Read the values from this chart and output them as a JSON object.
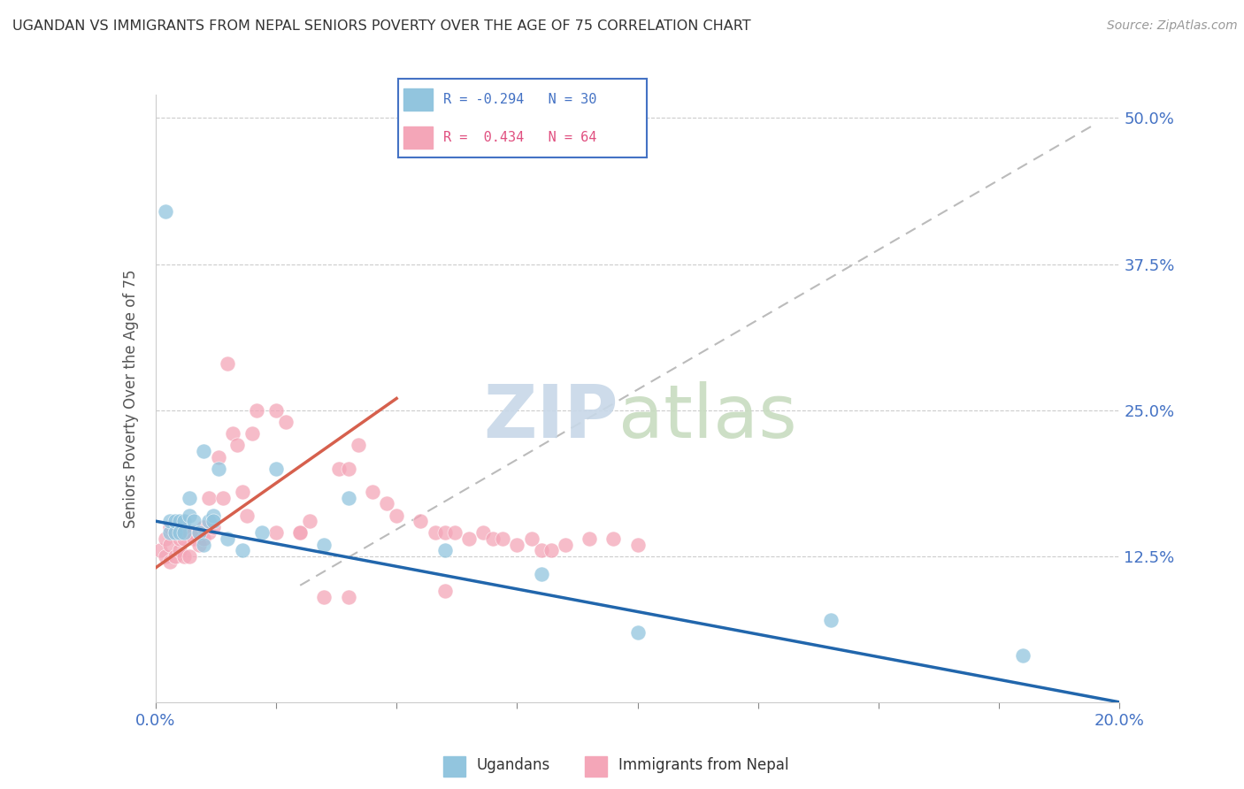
{
  "title": "UGANDAN VS IMMIGRANTS FROM NEPAL SENIORS POVERTY OVER THE AGE OF 75 CORRELATION CHART",
  "source": "Source: ZipAtlas.com",
  "ylabel": "Seniors Poverty Over the Age of 75",
  "legend_R": [
    "R = -0.294",
    "R =  0.434"
  ],
  "legend_N": [
    "N = 30",
    "N = 64"
  ],
  "ugandan_color": "#92c5de",
  "nepal_color": "#f4a6b8",
  "ugandan_line_color": "#2166ac",
  "nepal_line_color": "#d6604d",
  "ref_line_color": "#bbbbbb",
  "background_color": "#ffffff",
  "xlim": [
    0.0,
    0.2
  ],
  "ylim": [
    0.0,
    0.52
  ],
  "ugandan_x": [
    0.002,
    0.003,
    0.003,
    0.004,
    0.004,
    0.005,
    0.005,
    0.006,
    0.006,
    0.007,
    0.007,
    0.008,
    0.009,
    0.01,
    0.01,
    0.011,
    0.012,
    0.012,
    0.013,
    0.015,
    0.018,
    0.022,
    0.025,
    0.035,
    0.04,
    0.06,
    0.08,
    0.1,
    0.14,
    0.18
  ],
  "ugandan_y": [
    0.42,
    0.145,
    0.155,
    0.145,
    0.155,
    0.155,
    0.145,
    0.155,
    0.145,
    0.16,
    0.175,
    0.155,
    0.145,
    0.135,
    0.215,
    0.155,
    0.16,
    0.155,
    0.2,
    0.14,
    0.13,
    0.145,
    0.2,
    0.135,
    0.175,
    0.13,
    0.11,
    0.06,
    0.07,
    0.04
  ],
  "nepal_x": [
    0.001,
    0.002,
    0.002,
    0.003,
    0.003,
    0.003,
    0.004,
    0.004,
    0.005,
    0.005,
    0.005,
    0.006,
    0.006,
    0.007,
    0.007,
    0.008,
    0.008,
    0.009,
    0.009,
    0.01,
    0.01,
    0.011,
    0.011,
    0.012,
    0.013,
    0.014,
    0.015,
    0.016,
    0.017,
    0.018,
    0.019,
    0.02,
    0.021,
    0.025,
    0.027,
    0.03,
    0.03,
    0.032,
    0.038,
    0.04,
    0.042,
    0.045,
    0.048,
    0.05,
    0.055,
    0.058,
    0.06,
    0.062,
    0.065,
    0.068,
    0.07,
    0.072,
    0.075,
    0.078,
    0.08,
    0.082,
    0.085,
    0.09,
    0.095,
    0.1,
    0.025,
    0.035,
    0.04,
    0.06
  ],
  "nepal_y": [
    0.13,
    0.125,
    0.14,
    0.12,
    0.135,
    0.15,
    0.125,
    0.145,
    0.13,
    0.14,
    0.15,
    0.125,
    0.14,
    0.125,
    0.145,
    0.145,
    0.14,
    0.135,
    0.145,
    0.14,
    0.15,
    0.145,
    0.175,
    0.15,
    0.21,
    0.175,
    0.29,
    0.23,
    0.22,
    0.18,
    0.16,
    0.23,
    0.25,
    0.25,
    0.24,
    0.145,
    0.145,
    0.155,
    0.2,
    0.2,
    0.22,
    0.18,
    0.17,
    0.16,
    0.155,
    0.145,
    0.145,
    0.145,
    0.14,
    0.145,
    0.14,
    0.14,
    0.135,
    0.14,
    0.13,
    0.13,
    0.135,
    0.14,
    0.14,
    0.135,
    0.145,
    0.09,
    0.09,
    0.095
  ],
  "ugandan_trend": [
    -0.294,
    0.145
  ],
  "nepal_trend": [
    0.434,
    0.12
  ],
  "ytick_positions": [
    0.0,
    0.125,
    0.25,
    0.375,
    0.5
  ],
  "ytick_labels": [
    "",
    "12.5%",
    "25.0%",
    "37.5%",
    "50.0%"
  ],
  "xtick_positions": [
    0.0,
    0.025,
    0.05,
    0.075,
    0.1,
    0.125,
    0.15,
    0.175,
    0.2
  ],
  "xtick_labels": [
    "0.0%",
    "",
    "",
    "",
    "",
    "",
    "",
    "",
    "20.0%"
  ]
}
